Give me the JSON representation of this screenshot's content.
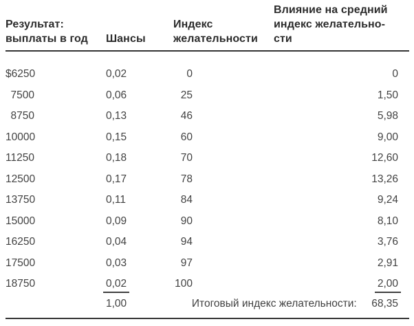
{
  "page": {
    "background": "#ffffff",
    "ink_color": "#414141",
    "header_ink_color": "#2b2b2b",
    "rule_color": "#343434"
  },
  "table": {
    "headers": {
      "col1": [
        "Результат:",
        "выплаты в год"
      ],
      "col2": [
        "Шансы"
      ],
      "col3": [
        "Индекс",
        "желательности"
      ],
      "col4": [
        "Влияние на средний",
        "индекс желательно-",
        "сти"
      ]
    },
    "rows": [
      {
        "payout": "$6250",
        "chance": "0,02",
        "index": "0",
        "impact": "0"
      },
      {
        "payout": "7500",
        "chance": "0,06",
        "index": "25",
        "impact": "1,50"
      },
      {
        "payout": "8750",
        "chance": "0,13",
        "index": "46",
        "impact": "5,98"
      },
      {
        "payout": "10000",
        "chance": "0,15",
        "index": "60",
        "impact": "9,00"
      },
      {
        "payout": "11250",
        "chance": "0,18",
        "index": "70",
        "impact": "12,60"
      },
      {
        "payout": "12500",
        "chance": "0,17",
        "index": "78",
        "impact": "13,26"
      },
      {
        "payout": "13750",
        "chance": "0,11",
        "index": "84",
        "impact": "9,24"
      },
      {
        "payout": "15000",
        "chance": "0,09",
        "index": "90",
        "impact": "8,10"
      },
      {
        "payout": "16250",
        "chance": "0,04",
        "index": "94",
        "impact": "3,76"
      },
      {
        "payout": "17500",
        "chance": "0,03",
        "index": "97",
        "impact": "2,91"
      },
      {
        "payout": "18750",
        "chance": "0,02",
        "index": "100",
        "impact": "2,00",
        "underline": true
      }
    ],
    "totals": {
      "chance_total": "1,00",
      "label": "Итоговый индекс желательности:",
      "value": "68,35"
    }
  }
}
